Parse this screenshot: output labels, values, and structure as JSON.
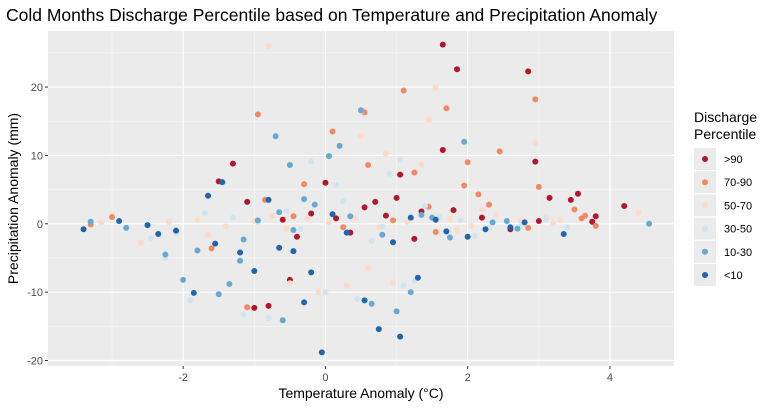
{
  "chart_data": {
    "type": "scatter",
    "title": "Cold Months Discharge Percentile based on Temperature and Precipitation Anomaly",
    "xlabel": "Temperature Anomaly (°C)",
    "ylabel": "Precipitation Anomaly (mm)",
    "xlim": [
      -3.9,
      4.9
    ],
    "ylim": [
      -20.8,
      28.2
    ],
    "x_ticks": [
      -2,
      0,
      2,
      4
    ],
    "y_ticks": [
      -20,
      -10,
      0,
      10,
      20
    ],
    "grid": true,
    "legend": {
      "title": "Discharge\nPercentile",
      "position": "right"
    },
    "colors": {
      ">90": "#b2182b",
      "70-90": "#ef8a62",
      "50-70": "#fddbc7",
      "30-50": "#d1e5f0",
      "10-30": "#67a9cf",
      "<10": "#2166ac"
    },
    "series": [
      {
        "name": ">90",
        "x": [
          1.65,
          1.85,
          2.85,
          1.05,
          -1.3,
          1.65,
          2.95,
          3.55,
          4.2,
          3.8,
          3.0,
          -1.5,
          0.0,
          1.0,
          0.7,
          0.35,
          1.8,
          2.6,
          3.15,
          2.2,
          -0.5,
          -0.8,
          -1.0,
          -0.2,
          0.15,
          0.55,
          1.35,
          3.45,
          3.75,
          0.85,
          -0.4,
          -1.1,
          -0.6,
          1.25
        ],
        "y": [
          26.2,
          22.6,
          22.3,
          7.2,
          8.8,
          10.8,
          9.1,
          4.4,
          2.6,
          1.1,
          0.4,
          6.2,
          6.0,
          3.8,
          3.2,
          -1.3,
          2.0,
          -0.8,
          3.8,
          0.9,
          -8.2,
          -12.0,
          -12.3,
          1.5,
          0.8,
          2.4,
          1.8,
          3.5,
          0.3,
          1.2,
          -1.9,
          3.2,
          0.6,
          -2.2
        ]
      },
      {
        "name": "70-90",
        "x": [
          -0.95,
          1.1,
          2.95,
          0.1,
          0.55,
          2.45,
          1.7,
          1.25,
          2.0,
          2.15,
          3.0,
          1.95,
          0.6,
          -3.0,
          -3.3,
          3.6,
          3.8,
          3.5,
          3.65,
          2.85,
          -1.1,
          1.45,
          -0.45,
          0.25,
          -0.85,
          -0.3,
          1.55,
          2.3,
          0.95,
          -1.6
        ],
        "y": [
          16.0,
          19.5,
          18.2,
          13.5,
          16.3,
          10.6,
          16.9,
          7.5,
          9.0,
          4.3,
          5.4,
          5.6,
          8.6,
          1.0,
          -0.1,
          0.8,
          -0.3,
          2.1,
          1.2,
          -0.6,
          -12.2,
          2.5,
          1.1,
          -0.5,
          3.5,
          5.8,
          -1.2,
          2.8,
          0.5,
          -3.6
        ]
      },
      {
        "name": "50-70",
        "x": [
          -0.8,
          1.55,
          1.45,
          2.95,
          0.5,
          0.85,
          1.35,
          -0.5,
          -0.1,
          0.3,
          0.6,
          2.2,
          2.75,
          3.1,
          3.3,
          4.4,
          3.2,
          -2.2,
          -1.8,
          -1.4,
          -1.0,
          -0.75,
          -0.55,
          -0.25,
          0.05,
          0.4,
          0.75,
          1.15,
          1.75,
          2.05,
          2.4,
          -2.6,
          -3.15,
          -1.65,
          0.95,
          1.85
        ],
        "y": [
          26.0,
          19.9,
          15.2,
          11.8,
          12.8,
          10.2,
          8.7,
          -8.7,
          -10.0,
          -9.0,
          -6.5,
          2.1,
          0.5,
          1.0,
          0.6,
          1.6,
          0.1,
          0.3,
          0.6,
          -0.4,
          0.4,
          1.1,
          -0.7,
          0.8,
          0.2,
          0.9,
          -0.5,
          0.3,
          0.7,
          -0.3,
          1.3,
          -2.8,
          0.2,
          -1.6,
          -8.6,
          -0.9
        ]
      },
      {
        "name": "30-50",
        "x": [
          0.5,
          1.05,
          -1.9,
          -0.8,
          -1.15,
          0.0,
          0.45,
          1.1,
          1.25,
          -0.2,
          0.15,
          0.9,
          1.4,
          1.9,
          2.3,
          2.55,
          2.75,
          3.1,
          3.4,
          -1.3,
          -1.7,
          -2.1,
          -0.55,
          -0.35,
          0.25,
          0.65,
          1.6,
          2.1,
          -2.25,
          -2.45,
          0.8,
          -0.95
        ],
        "y": [
          16.5,
          9.4,
          -11.2,
          -13.8,
          -13.3,
          -10.0,
          -11.0,
          -9.0,
          -8.3,
          9.1,
          5.7,
          7.3,
          2.6,
          0.5,
          -0.6,
          0.4,
          -0.3,
          0.7,
          -0.5,
          0.9,
          1.6,
          -1.3,
          1.9,
          -0.8,
          3.3,
          -2.5,
          1.0,
          -1.8,
          -5.0,
          -2.1,
          -0.4,
          0.3
        ]
      },
      {
        "name": "10-30",
        "x": [
          -0.7,
          0.5,
          1.95,
          0.2,
          0.05,
          -0.5,
          0.65,
          1.0,
          1.2,
          -1.5,
          -1.35,
          -2.25,
          2.55,
          -2.8,
          -3.3,
          4.55,
          1.35,
          -0.3,
          -0.65,
          -0.95,
          -1.15,
          -0.45,
          -0.15,
          0.35,
          0.8,
          1.5,
          1.75,
          2.35,
          2.7,
          -2.0,
          -1.8,
          -1.2,
          -0.6
        ],
        "y": [
          12.8,
          16.6,
          12.0,
          11.4,
          9.9,
          8.6,
          -11.7,
          -12.8,
          -10.0,
          -10.3,
          -8.8,
          -4.5,
          0.4,
          -0.6,
          0.3,
          0.0,
          1.3,
          3.6,
          1.7,
          0.5,
          -2.3,
          -0.9,
          2.8,
          1.1,
          -1.6,
          0.9,
          -2.0,
          0.2,
          -0.7,
          -8.2,
          -3.9,
          -5.4,
          -14.1
        ]
      },
      {
        "name": "<10",
        "x": [
          -0.05,
          0.75,
          1.05,
          -1.45,
          -0.8,
          -1.65,
          -1.2,
          -0.2,
          0.3,
          0.55,
          1.3,
          1.7,
          2.25,
          2.8,
          3.35,
          -2.1,
          -2.5,
          -3.4,
          -2.9,
          -1.0,
          -0.45,
          0.1,
          0.95,
          1.55,
          2.0,
          2.6,
          -0.3,
          -0.65,
          -1.85,
          1.2,
          -1.55,
          -2.35
        ],
        "y": [
          -18.8,
          -15.4,
          -16.5,
          6.1,
          3.5,
          4.1,
          -4.2,
          -7.1,
          -1.3,
          -11.2,
          -7.9,
          -1.1,
          -0.8,
          0.2,
          -1.5,
          -1.0,
          -0.2,
          -0.8,
          0.4,
          -6.9,
          -4.0,
          1.4,
          -2.7,
          0.6,
          -1.9,
          -0.5,
          -11.5,
          -3.5,
          -10.1,
          0.9,
          -2.9,
          -1.5
        ]
      }
    ]
  }
}
